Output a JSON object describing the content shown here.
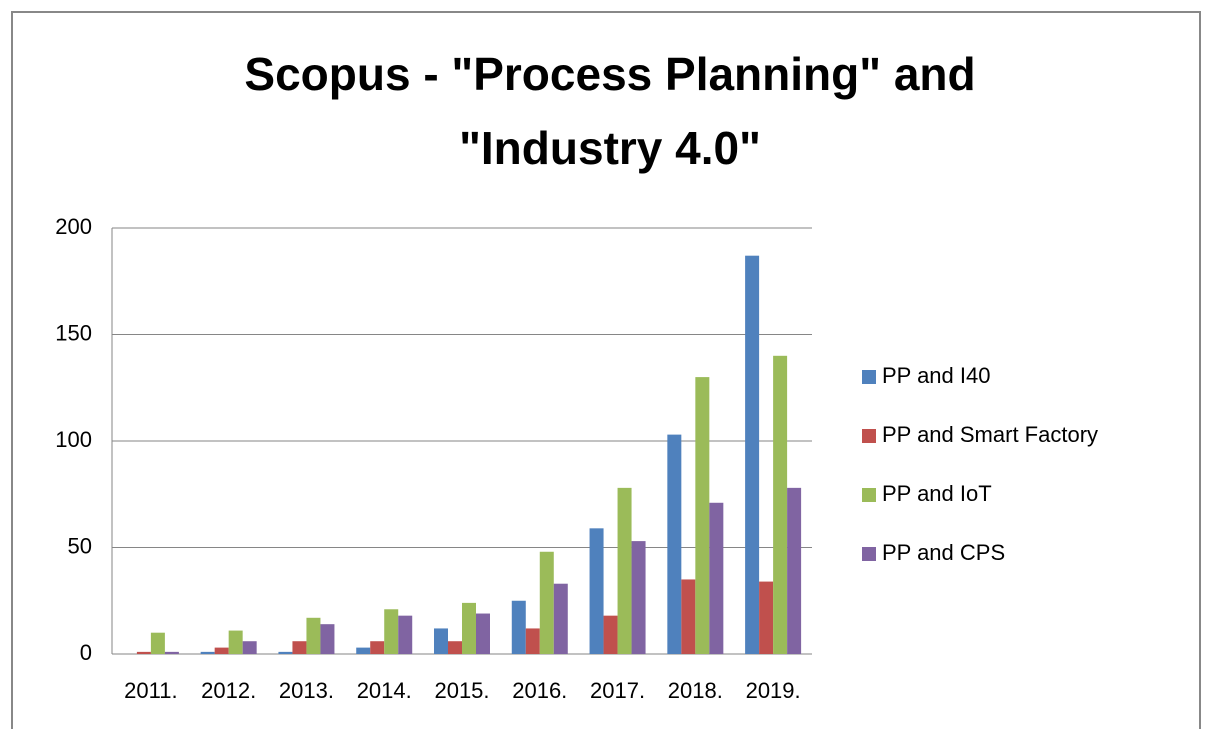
{
  "chart_data": {
    "type": "bar",
    "title": [
      "Scopus - \"Process Planning\" and",
      "\"Industry 4.0\""
    ],
    "categories": [
      "2011.",
      "2012.",
      "2013.",
      "2014.",
      "2015.",
      "2016.",
      "2017.",
      "2018.",
      "2019."
    ],
    "series": [
      {
        "name": "PP and I40",
        "color": "#4f81bd",
        "values": [
          0,
          1,
          1,
          3,
          12,
          25,
          59,
          103,
          187
        ]
      },
      {
        "name": "PP and Smart Factory",
        "color": "#c0504d",
        "values": [
          1,
          3,
          6,
          6,
          6,
          12,
          18,
          35,
          34
        ]
      },
      {
        "name": "PP and IoT",
        "color": "#9bbb59",
        "values": [
          10,
          11,
          17,
          21,
          24,
          48,
          78,
          130,
          140
        ]
      },
      {
        "name": "PP and CPS",
        "color": "#8064a2",
        "values": [
          1,
          6,
          14,
          18,
          19,
          33,
          53,
          71,
          78
        ]
      }
    ],
    "ylim": [
      0,
      200
    ],
    "yticks": [
      0,
      50,
      100,
      150,
      200
    ],
    "grid": true,
    "legend": "right"
  }
}
